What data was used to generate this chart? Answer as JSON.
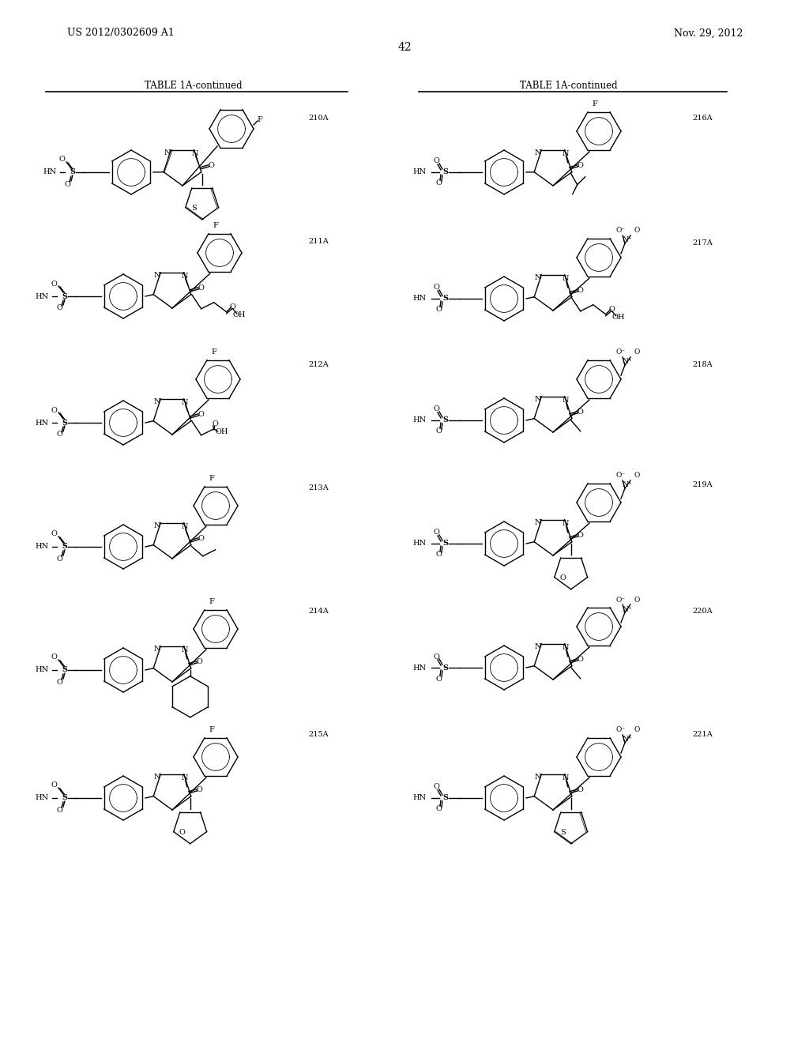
{
  "background_color": "#ffffff",
  "page_number": "42",
  "left_header": "US 2012/0302609 A1",
  "right_header": "Nov. 29, 2012",
  "table_title": "TABLE 1A-continued",
  "figsize": [
    10.24,
    13.2
  ],
  "dpi": 100
}
